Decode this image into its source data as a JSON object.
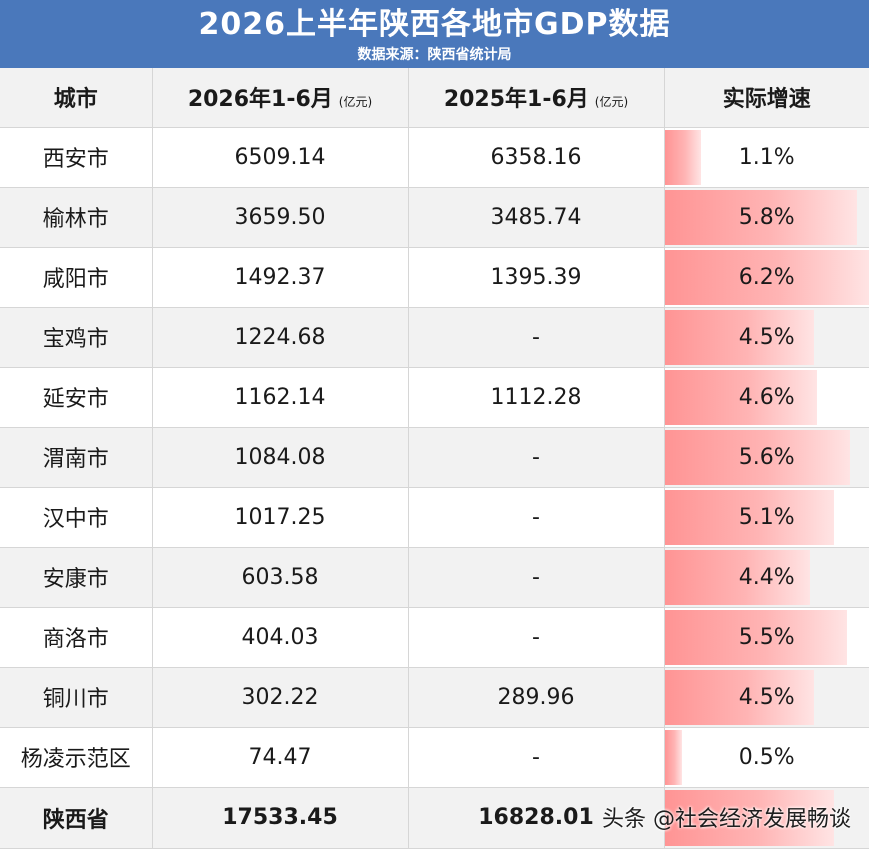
{
  "header": {
    "title": "2026上半年陕西各地市GDP数据",
    "source": "数据来源：陕西省统计局"
  },
  "columns": {
    "city": "城市",
    "gdp_2026": "2026年1-6月",
    "gdp_2026_unit": "(亿元)",
    "gdp_2025": "2025年1-6月",
    "gdp_2025_unit": "(亿元)",
    "growth": "实际增速"
  },
  "max_growth": 6.2,
  "rows": [
    {
      "city": "西安市",
      "gdp_2026": "6509.14",
      "gdp_2025": "6358.16",
      "growth": "1.1%",
      "growth_value": 1.1
    },
    {
      "city": "榆林市",
      "gdp_2026": "3659.50",
      "gdp_2025": "3485.74",
      "growth": "5.8%",
      "growth_value": 5.8
    },
    {
      "city": "咸阳市",
      "gdp_2026": "1492.37",
      "gdp_2025": "1395.39",
      "growth": "6.2%",
      "growth_value": 6.2
    },
    {
      "city": "宝鸡市",
      "gdp_2026": "1224.68",
      "gdp_2025": "-",
      "growth": "4.5%",
      "growth_value": 4.5
    },
    {
      "city": "延安市",
      "gdp_2026": "1162.14",
      "gdp_2025": "1112.28",
      "growth": "4.6%",
      "growth_value": 4.6
    },
    {
      "city": "渭南市",
      "gdp_2026": "1084.08",
      "gdp_2025": "-",
      "growth": "5.6%",
      "growth_value": 5.6
    },
    {
      "city": "汉中市",
      "gdp_2026": "1017.25",
      "gdp_2025": "-",
      "growth": "5.1%",
      "growth_value": 5.1
    },
    {
      "city": "安康市",
      "gdp_2026": "603.58",
      "gdp_2025": "-",
      "growth": "4.4%",
      "growth_value": 4.4
    },
    {
      "city": "商洛市",
      "gdp_2026": "404.03",
      "gdp_2025": "-",
      "growth": "5.5%",
      "growth_value": 5.5
    },
    {
      "city": "铜川市",
      "gdp_2026": "302.22",
      "gdp_2025": "289.96",
      "growth": "4.5%",
      "growth_value": 4.5
    },
    {
      "city": "杨凌示范区",
      "gdp_2026": "74.47",
      "gdp_2025": "-",
      "growth": "0.5%",
      "growth_value": 0.5
    }
  ],
  "total": {
    "city": "陕西省",
    "gdp_2026": "17533.45",
    "gdp_2025": "16828.01",
    "growth": "",
    "growth_value": 5.1
  },
  "watermark": "头条 @社会经济发展畅谈"
}
